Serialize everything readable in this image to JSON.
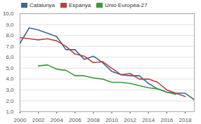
{
  "chart_data": {
    "type": "line",
    "x": [
      2000,
      2001,
      2002,
      2003,
      2004,
      2005,
      2006,
      2007,
      2008,
      2009,
      2010,
      2011,
      2012,
      2013,
      2014,
      2015,
      2016,
      2017,
      2018,
      2019
    ],
    "series": [
      {
        "name": "Catalunya",
        "color": "#3d6797",
        "values": [
          7.3,
          8.7,
          8.5,
          8.2,
          7.9,
          6.7,
          6.7,
          5.8,
          6.1,
          5.5,
          4.7,
          4.4,
          4.3,
          4.3,
          3.6,
          3.1,
          2.8,
          2.7,
          2.7,
          2.1
        ]
      },
      {
        "name": "Espanya",
        "color": "#b8423e",
        "values": [
          7.8,
          7.7,
          7.6,
          7.7,
          7.5,
          7.0,
          6.3,
          6.1,
          5.5,
          5.6,
          5.0,
          4.4,
          4.5,
          4.0,
          4.0,
          3.7,
          3.0,
          2.7,
          2.4,
          null
        ]
      },
      {
        "name": "Unió Europea-27",
        "color": "#3a9a3a",
        "values": [
          null,
          null,
          5.2,
          5.3,
          4.9,
          4.8,
          4.3,
          4.3,
          4.1,
          4.0,
          3.7,
          3.7,
          3.6,
          3.4,
          3.2,
          3.1,
          2.8,
          2.6,
          null,
          null
        ]
      }
    ],
    "xlim": [
      2000,
      2019
    ],
    "xticks": [
      2000,
      2002,
      2004,
      2006,
      2008,
      2010,
      2012,
      2014,
      2016,
      2018
    ],
    "ylim": [
      1,
      10
    ],
    "yticks": [
      {
        "value": 1,
        "label": "1,0"
      },
      {
        "value": 2,
        "label": "2,0"
      },
      {
        "value": 3,
        "label": "3,0"
      },
      {
        "value": 4,
        "label": "4,0"
      },
      {
        "value": 5,
        "label": "5,0"
      },
      {
        "value": 6,
        "label": "6,0"
      },
      {
        "value": 7,
        "label": "7,0"
      },
      {
        "value": 8,
        "label": "8,0"
      },
      {
        "value": 9,
        "label": "9,0"
      },
      {
        "value": 10,
        "label": "10,0"
      }
    ],
    "grid": true,
    "legend": "top-left"
  }
}
